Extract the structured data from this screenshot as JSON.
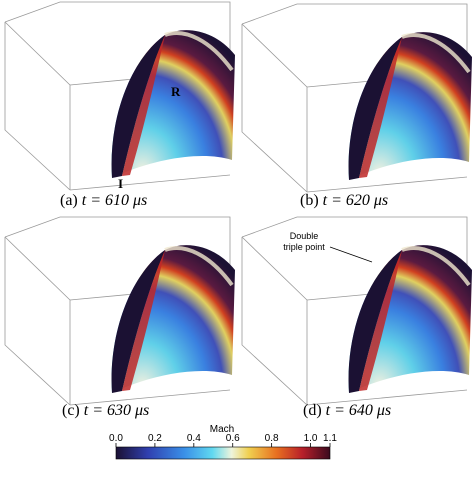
{
  "panels": [
    {
      "label": "(a)",
      "time": "t = 610 μs"
    },
    {
      "label": "(b)",
      "time": "t = 620 μs"
    },
    {
      "label": "(c)",
      "time": "t = 630 μs"
    },
    {
      "label": "(d)",
      "time": "t = 640 μs"
    }
  ],
  "annotations": {
    "reflected": "R",
    "incident": "I",
    "double_triple_point": [
      "Double",
      "triple point"
    ]
  },
  "colorbar": {
    "label": "Mach",
    "lim": [
      0,
      1.1
    ],
    "ticks": [
      {
        "value": 0,
        "label": "0.0"
      },
      0.2,
      0.4,
      0.6,
      0.8,
      {
        "value": 1,
        "label": "1.0"
      },
      1.1
    ]
  }
}
